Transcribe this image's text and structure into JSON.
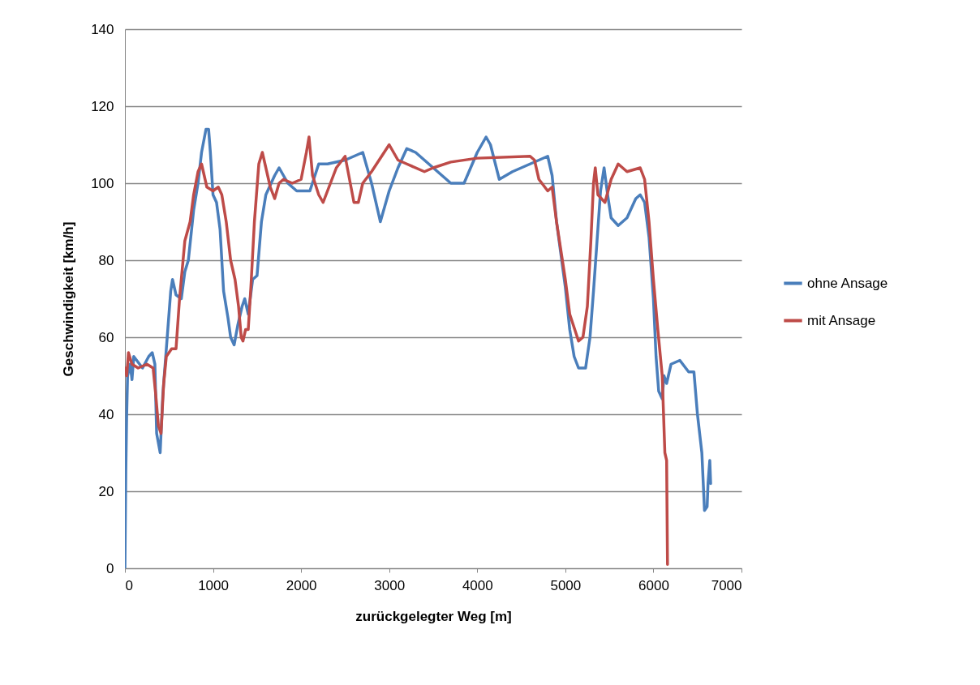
{
  "chart_data": {
    "type": "line",
    "xlabel": "zurückgelegter Weg [m]",
    "ylabel": "Geschwindigkeit  [km/h]",
    "xlim": [
      0,
      7000
    ],
    "xticks": [
      0,
      1000,
      2000,
      3000,
      4000,
      5000,
      6000,
      7000
    ],
    "ylim": [
      0,
      140
    ],
    "yticks": [
      0,
      20,
      40,
      60,
      80,
      100,
      120,
      140
    ],
    "grid": "y",
    "legend": "right",
    "marker": "none",
    "line_style": "solid",
    "series": [
      {
        "name": "ohne Ansage",
        "color": "#4a7ebb",
        "x": [
          0,
          10,
          20,
          30,
          60,
          80,
          100,
          200,
          270,
          310,
          340,
          360,
          400,
          430,
          480,
          520,
          540,
          580,
          640,
          680,
          720,
          780,
          830,
          870,
          920,
          950,
          970,
          1000,
          1040,
          1080,
          1120,
          1170,
          1200,
          1240,
          1280,
          1330,
          1360,
          1400,
          1450,
          1500,
          1550,
          1600,
          1700,
          1750,
          1850,
          1950,
          2100,
          2200,
          2300,
          2500,
          2700,
          2800,
          2900,
          3000,
          3100,
          3200,
          3300,
          3500,
          3700,
          3850,
          4000,
          4100,
          4150,
          4250,
          4400,
          4600,
          4800,
          4850,
          4900,
          5000,
          5050,
          5100,
          5150,
          5230,
          5280,
          5320,
          5360,
          5400,
          5440,
          5480,
          5520,
          5600,
          5650,
          5700,
          5800,
          5850,
          5900,
          5950,
          6000,
          6030,
          6060,
          6100,
          6120,
          6150,
          6200,
          6300,
          6400,
          6460,
          6500,
          6550,
          6580,
          6610,
          6620,
          6640,
          6650
        ],
        "values": [
          0,
          25,
          40,
          50,
          53,
          49,
          55,
          52,
          55,
          56,
          53,
          35,
          30,
          45,
          60,
          72,
          75,
          71,
          70,
          77,
          80,
          93,
          100,
          108,
          114,
          114,
          108,
          97,
          95,
          88,
          72,
          65,
          60,
          58,
          63,
          68,
          70,
          66,
          75,
          76,
          90,
          97,
          102,
          104,
          100,
          98,
          98,
          105,
          105,
          106,
          108,
          100,
          90,
          98,
          104,
          109,
          108,
          104,
          100,
          100,
          108,
          112,
          110,
          101,
          103,
          105,
          107,
          102,
          90,
          73,
          62,
          55,
          52,
          52,
          60,
          72,
          85,
          98,
          104,
          97,
          91,
          89,
          90,
          91,
          96,
          97,
          95,
          86,
          70,
          55,
          46,
          44,
          50,
          48,
          53,
          54,
          51,
          51,
          40,
          30,
          15,
          16,
          22,
          28,
          22
        ]
      },
      {
        "name": "mit Ansage",
        "color": "#be4b48",
        "x": [
          0,
          20,
          40,
          80,
          150,
          250,
          320,
          350,
          380,
          410,
          440,
          470,
          530,
          580,
          620,
          680,
          740,
          780,
          830,
          870,
          900,
          930,
          1000,
          1060,
          1100,
          1150,
          1200,
          1250,
          1290,
          1320,
          1340,
          1370,
          1400,
          1430,
          1470,
          1520,
          1560,
          1600,
          1650,
          1700,
          1750,
          1800,
          1900,
          2000,
          2060,
          2090,
          2130,
          2200,
          2250,
          2400,
          2500,
          2600,
          2650,
          2700,
          2800,
          3000,
          3100,
          3200,
          3400,
          3500,
          3700,
          4000,
          4600,
          4650,
          4700,
          4800,
          4850,
          4900,
          5000,
          5050,
          5150,
          5200,
          5250,
          5290,
          5320,
          5340,
          5370,
          5450,
          5520,
          5600,
          5700,
          5850,
          5900,
          5950,
          6000,
          6050,
          6100,
          6130,
          6150,
          6160
        ],
        "values": [
          52,
          50,
          56,
          53,
          52,
          53,
          52,
          45,
          37,
          35,
          48,
          55,
          57,
          57,
          70,
          85,
          90,
          97,
          103,
          105,
          102,
          99,
          98,
          99,
          97,
          90,
          80,
          75,
          68,
          60,
          59,
          62,
          62,
          73,
          90,
          105,
          108,
          104,
          99,
          96,
          100,
          101,
          100,
          101,
          108,
          112,
          102,
          97,
          95,
          104,
          107,
          95,
          95,
          100,
          103,
          110,
          106,
          105,
          103,
          104,
          105.5,
          106.5,
          107,
          106,
          101,
          98,
          99,
          90,
          75,
          66,
          59,
          60,
          68,
          85,
          100,
          104,
          97,
          95,
          101,
          105,
          103,
          104,
          101,
          90,
          75,
          62,
          50,
          30,
          28,
          1
        ]
      }
    ]
  }
}
